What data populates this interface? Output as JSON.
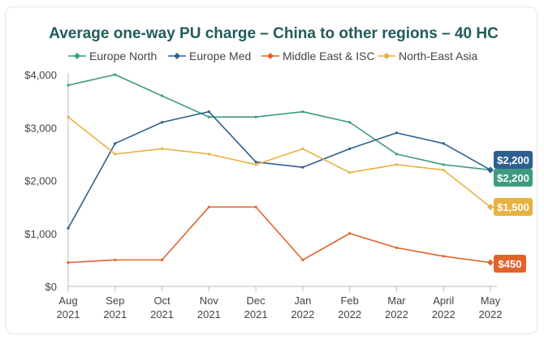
{
  "chart_data": {
    "type": "line",
    "title": "Average one-way PU charge – China to other regions – 40 HC",
    "categories": [
      [
        "Aug",
        "2021"
      ],
      [
        "Sep",
        "2021"
      ],
      [
        "Oct",
        "2021"
      ],
      [
        "Nov",
        "2021"
      ],
      [
        "Dec",
        "2021"
      ],
      [
        "Jan",
        "2022"
      ],
      [
        "Feb",
        "2022"
      ],
      [
        "Mar",
        "2022"
      ],
      [
        "April",
        "2022"
      ],
      [
        "May",
        "2022"
      ]
    ],
    "ylim": [
      0,
      4000
    ],
    "yticks": [
      {
        "value": 0,
        "label": "$0"
      },
      {
        "value": 1000,
        "label": "$1,000"
      },
      {
        "value": 2000,
        "label": "$2,000"
      },
      {
        "value": 3000,
        "label": "$3,000"
      },
      {
        "value": 4000,
        "label": "$4,000"
      }
    ],
    "grid": false,
    "legend_position": "top",
    "series": [
      {
        "name": "Europe North",
        "color": "#3e9b7f",
        "values": [
          3800,
          4000,
          3600,
          3200,
          3200,
          3300,
          3100,
          2500,
          2300,
          2200
        ],
        "end_label": "$2,200"
      },
      {
        "name": "Europe Med",
        "color": "#2f5f8f",
        "values": [
          1100,
          2700,
          3100,
          3300,
          2350,
          2250,
          2600,
          2900,
          2700,
          2200
        ],
        "end_label": "$2,200"
      },
      {
        "name": "Middle East & ISC",
        "color": "#e2622b",
        "values": [
          450,
          500,
          500,
          1500,
          1500,
          500,
          1000,
          730,
          570,
          450
        ],
        "end_label": "$450"
      },
      {
        "name": "North-East Asia",
        "color": "#e8b140",
        "values": [
          3200,
          2500,
          2600,
          2500,
          2300,
          2600,
          2150,
          2300,
          2200,
          1500
        ],
        "end_label": "$1,500"
      }
    ]
  }
}
